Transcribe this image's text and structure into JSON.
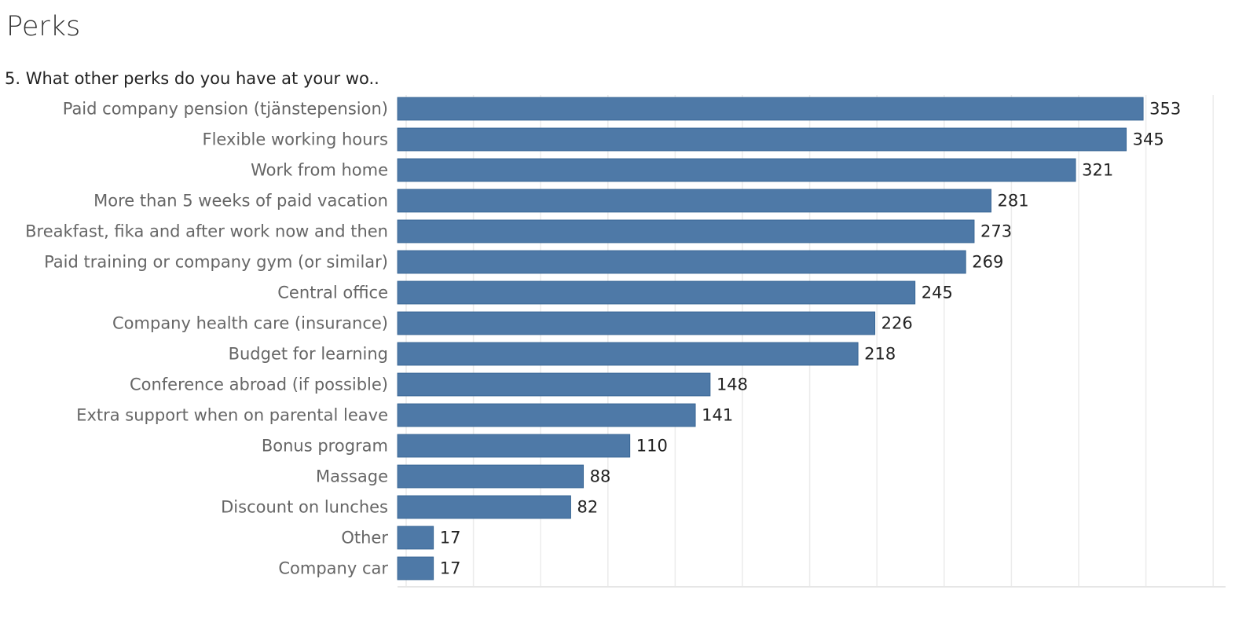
{
  "header": {
    "title": "Perks"
  },
  "chart_data": {
    "type": "bar",
    "orientation": "horizontal",
    "title": "5. What other perks do you have at your wo..",
    "xlabel": "",
    "ylabel": "",
    "grid": true,
    "bar_color": "#4e79a7",
    "categories": [
      "Paid company pension (tjänstepension)",
      "Flexible working hours",
      "Work from home",
      "More than 5 weeks of paid vacation",
      "Breakfast, fika and after work now and then",
      "Paid training or company gym (or similar)",
      "Central office",
      "Company health care (insurance)",
      "Budget for learning",
      "Conference abroad (if possible)",
      "Extra support when on parental leave",
      "Bonus program",
      "Massage",
      "Discount on lunches",
      "Other",
      "Company car"
    ],
    "values": [
      353,
      345,
      321,
      281,
      273,
      269,
      245,
      226,
      218,
      148,
      141,
      110,
      88,
      82,
      17,
      17
    ],
    "xlim": [
      0,
      392
    ]
  }
}
